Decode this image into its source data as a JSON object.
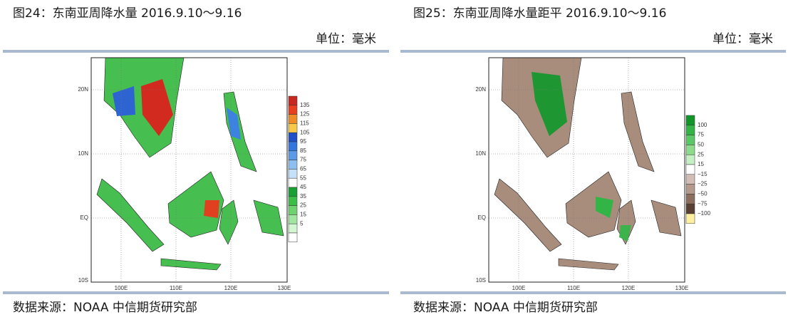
{
  "panels": [
    {
      "title": "图24：东南亚周降水量 2016.9.10～9.16",
      "unit": "单位：毫米",
      "map": {
        "lat_labels": [
          "20N",
          "10N",
          "EQ",
          "10S"
        ],
        "lon_labels": [
          "100E",
          "110E",
          "120E",
          "130E"
        ],
        "legend": {
          "labels": [
            "135",
            "125",
            "115",
            "105",
            "95",
            "85",
            "75",
            "65",
            "55",
            "45",
            "35",
            "25",
            "15",
            "5"
          ],
          "colors": [
            "#c8281e",
            "#e8401e",
            "#f08c28",
            "#f8c84a",
            "#1e50c8",
            "#3278dc",
            "#5a9ae6",
            "#8cbef0",
            "#c4e0fa",
            "#ffffff",
            "#18a032",
            "#3cbe46",
            "#6ed26e",
            "#a0e6a0",
            "#d2f5d2",
            "#ffffff"
          ]
        }
      },
      "source": "数据来源：NOAA 中信期货研究部"
    },
    {
      "title": "图25：东南亚周降水量距平 2016.9.10～9.16",
      "unit": "单位：毫米",
      "map": {
        "lat_labels": [
          "20N",
          "10N",
          "EQ",
          "10S"
        ],
        "lon_labels": [
          "100E",
          "110E",
          "120E",
          "130E"
        ],
        "legend": {
          "labels": [
            "100",
            "75",
            "50",
            "25",
            "15",
            "−15",
            "−25",
            "−50",
            "−75",
            "−100"
          ],
          "colors": [
            "#12962a",
            "#32b446",
            "#5ac864",
            "#8cdc8c",
            "#c4f0c4",
            "#ffffff",
            "#d2beb4",
            "#b49a8c",
            "#8c6e5e",
            "#5a4032",
            "#fff0a0"
          ]
        }
      },
      "source": "数据来源：NOAA 中信期货研究部"
    }
  ]
}
